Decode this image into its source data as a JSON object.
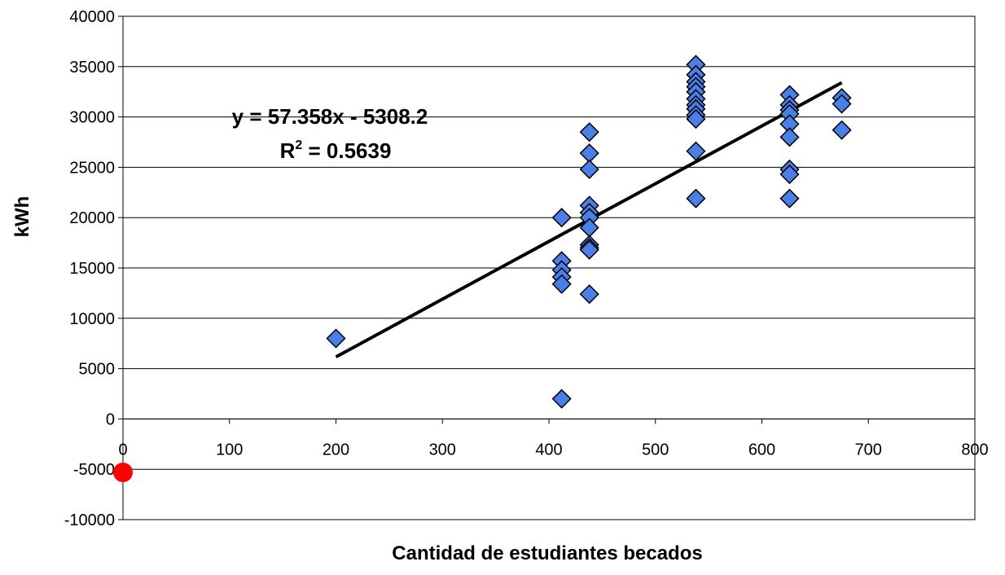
{
  "chart_data": {
    "type": "scatter",
    "xlabel": "Cantidad de estudiantes becados",
    "ylabel": "kWh",
    "xlim": [
      0,
      800
    ],
    "ylim": [
      -10000,
      40000
    ],
    "x_ticks": [
      0,
      100,
      200,
      300,
      400,
      500,
      600,
      700,
      800
    ],
    "y_ticks": [
      -10000,
      -5000,
      0,
      5000,
      10000,
      15000,
      20000,
      25000,
      30000,
      35000,
      40000
    ],
    "x_tick_labels": [
      "0",
      "100",
      "200",
      "300",
      "400",
      "500",
      "600",
      "700",
      "800"
    ],
    "y_tick_labels": [
      "-10000",
      "-5000",
      "0",
      "5000",
      "10000",
      "15000",
      "20000",
      "25000",
      "30000",
      "35000",
      "40000"
    ],
    "grid": "horizontal",
    "legend": "none",
    "series": [
      {
        "marker": "diamond",
        "color": "#4a7fe8",
        "points": [
          [
            200,
            8000
          ],
          [
            412,
            20000
          ],
          [
            412,
            15700
          ],
          [
            412,
            14800
          ],
          [
            412,
            14100
          ],
          [
            412,
            13400
          ],
          [
            412,
            2000
          ],
          [
            438,
            28500
          ],
          [
            438,
            26400
          ],
          [
            438,
            24800
          ],
          [
            438,
            21200
          ],
          [
            438,
            20500
          ],
          [
            438,
            20000
          ],
          [
            438,
            19000
          ],
          [
            438,
            17300
          ],
          [
            438,
            17000
          ],
          [
            438,
            16800
          ],
          [
            438,
            12400
          ],
          [
            538,
            35200
          ],
          [
            538,
            34200
          ],
          [
            538,
            33500
          ],
          [
            538,
            33000
          ],
          [
            538,
            32500
          ],
          [
            538,
            31800
          ],
          [
            538,
            31200
          ],
          [
            538,
            30800
          ],
          [
            538,
            30200
          ],
          [
            538,
            29800
          ],
          [
            538,
            26600
          ],
          [
            538,
            21900
          ],
          [
            626,
            32200
          ],
          [
            626,
            31200
          ],
          [
            626,
            30700
          ],
          [
            626,
            30300
          ],
          [
            626,
            29300
          ],
          [
            626,
            28000
          ],
          [
            626,
            24800
          ],
          [
            626,
            24300
          ],
          [
            626,
            21900
          ],
          [
            675,
            31900
          ],
          [
            675,
            31300
          ],
          [
            675,
            28700
          ]
        ]
      }
    ],
    "trendline": {
      "slope": 57.358,
      "intercept": -5308.2,
      "x_range": [
        200,
        675
      ],
      "color": "#000000",
      "equation_label": "y = 57.358x - 5308.2",
      "r2_prefix": "R",
      "r2_superscript": "2",
      "r2_value": " = 0.5639"
    },
    "highlight_point": {
      "x": 0,
      "y": -5308.2,
      "color": "#ff0000"
    }
  }
}
